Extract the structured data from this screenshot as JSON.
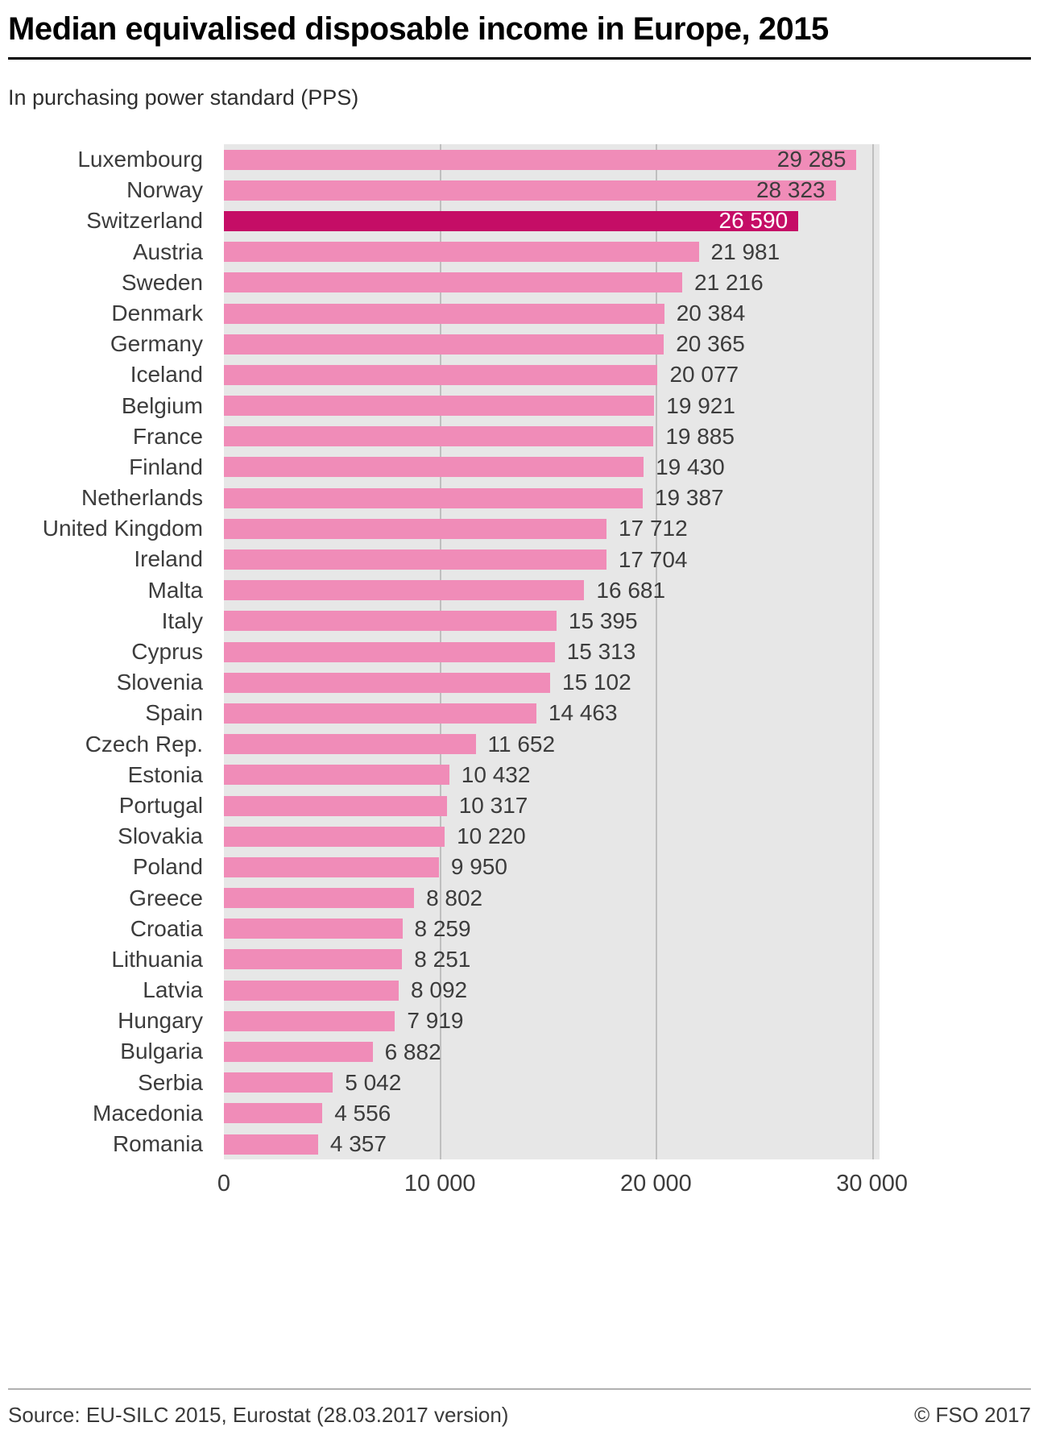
{
  "chart_data": {
    "type": "bar",
    "orientation": "horizontal",
    "title": "Median equivalised disposable income in Europe, 2015",
    "subtitle": "In purchasing power standard (PPS)",
    "xlabel": "",
    "ylabel": "",
    "xlim": [
      0,
      30350
    ],
    "grid": true,
    "legend": false,
    "categories": [
      "Luxembourg",
      "Norway",
      "Switzerland",
      "Austria",
      "Sweden",
      "Denmark",
      "Germany",
      "Iceland",
      "Belgium",
      "France",
      "Finland",
      "Netherlands",
      "United Kingdom",
      "Ireland",
      "Malta",
      "Italy",
      "Cyprus",
      "Slovenia",
      "Spain",
      "Czech Rep.",
      "Estonia",
      "Portugal",
      "Slovakia",
      "Poland",
      "Greece",
      "Croatia",
      "Lithuania",
      "Latvia",
      "Hungary",
      "Bulgaria",
      "Serbia",
      "Macedonia",
      "Romania"
    ],
    "values": [
      29285,
      28323,
      26590,
      21981,
      21216,
      20384,
      20365,
      20077,
      19921,
      19885,
      19430,
      19387,
      17712,
      17704,
      16681,
      15395,
      15313,
      15102,
      14463,
      11652,
      10432,
      10317,
      10220,
      9950,
      8802,
      8259,
      8251,
      8092,
      7919,
      6882,
      5042,
      4556,
      4357
    ],
    "value_labels": [
      "29 285",
      "28 323",
      "26 590",
      "21 981",
      "21 216",
      "20 384",
      "20 365",
      "20 077",
      "19 921",
      "19 885",
      "19 430",
      "19 387",
      "17 712",
      "17 704",
      "16 681",
      "15 395",
      "15 313",
      "15 102",
      "14 463",
      "11 652",
      "10 432",
      "10 317",
      "10 220",
      "9 950",
      "8 802",
      "8 259",
      "8 251",
      "8 092",
      "7 919",
      "6 882",
      "5 042",
      "4 556",
      "4 357"
    ],
    "highlight_category": "Switzerland",
    "highlight_index": 2,
    "inside_label_indices": [
      0,
      1,
      2
    ],
    "x_ticks": [
      {
        "value": 0,
        "label": "0"
      },
      {
        "value": 10000,
        "label": "10 000"
      },
      {
        "value": 20000,
        "label": "20 000"
      },
      {
        "value": 30000,
        "label": "30 000"
      }
    ],
    "colors": {
      "bar": "#f08cb8",
      "bar_highlight": "#c50d66",
      "plot_background": "#e7e7e7",
      "gridline": "#bfbfbf",
      "inside_label_on_highlight": "#ffffff"
    }
  },
  "footer": {
    "source": "Source: EU-SILC 2015, Eurostat (28.03.2017 version)",
    "copyright": "© FSO 2017"
  }
}
